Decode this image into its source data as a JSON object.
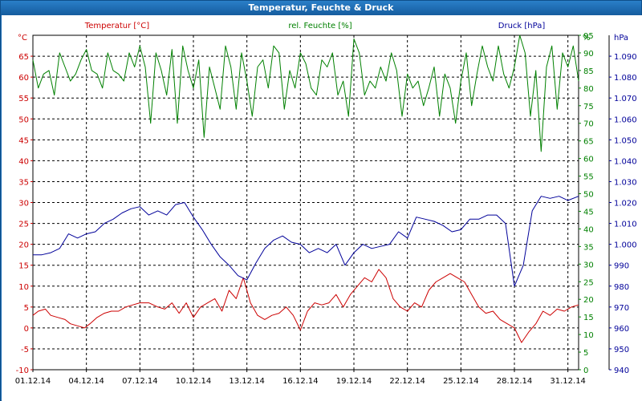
{
  "window": {
    "title": "Temperatur, Feuchte & Druck"
  },
  "chart_data": {
    "type": "line",
    "title": "Temperatur, Feuchte & Druck",
    "x_start": "01.12.14",
    "x_end": "02.01.15",
    "x_tick_labels": [
      "01.12.14",
      "04.12.14",
      "07.12.14",
      "10.12.14",
      "13.12.14",
      "16.12.14",
      "19.12.14",
      "22.12.14",
      "25.12.14",
      "28.12.14",
      "31.12.14"
    ],
    "x_tick_days": [
      0,
      3,
      6,
      9,
      12,
      15,
      18,
      21,
      24,
      27,
      30
    ],
    "x_range_days": [
      0,
      30.6
    ],
    "grid": true,
    "axes": {
      "temperature": {
        "label": "Temperatur [°C]",
        "unit_label": "°C",
        "range": [
          -10,
          70
        ],
        "ticks": [
          -10,
          -5,
          0,
          5,
          10,
          15,
          20,
          25,
          30,
          35,
          40,
          45,
          50,
          55,
          60,
          65
        ],
        "color": "#cc0000"
      },
      "humidity": {
        "label": "rel. Feuchte [%]",
        "unit_label": "%",
        "range": [
          0,
          95
        ],
        "ticks": [
          0,
          5,
          10,
          15,
          20,
          25,
          30,
          35,
          40,
          45,
          50,
          55,
          60,
          65,
          70,
          75,
          80,
          85,
          90,
          95
        ],
        "color": "#008000"
      },
      "pressure": {
        "label": "Druck [hPa]",
        "unit_label": "hPa",
        "range": [
          940,
          1100
        ],
        "ticks": [
          940,
          950,
          960,
          970,
          980,
          990,
          1000,
          1010,
          1020,
          1030,
          1040,
          1050,
          1060,
          1070,
          1080,
          1090
        ],
        "tick_labels": [
          "940",
          "950",
          "960",
          "970",
          "980",
          "990",
          "1.000",
          "1.010",
          "1.020",
          "1.030",
          "1.040",
          "1.050",
          "1.060",
          "1.070",
          "1.080",
          "1.090"
        ],
        "color": "#000099"
      }
    },
    "series": [
      {
        "name": "Temperatur [°C]",
        "axis": "temperature",
        "color": "#cc0000",
        "x": [
          0,
          0.3,
          0.7,
          1.0,
          1.4,
          1.8,
          2.1,
          2.5,
          2.9,
          3.2,
          3.6,
          4.0,
          4.4,
          4.8,
          5.2,
          5.6,
          6.0,
          6.5,
          7.0,
          7.4,
          7.8,
          8.2,
          8.6,
          9.0,
          9.4,
          9.8,
          10.2,
          10.6,
          11.0,
          11.4,
          11.8,
          12.2,
          12.6,
          13.0,
          13.4,
          13.8,
          14.2,
          14.6,
          15.0,
          15.4,
          15.8,
          16.2,
          16.6,
          17.0,
          17.4,
          17.8,
          18.2,
          18.6,
          19.0,
          19.4,
          19.8,
          20.2,
          20.6,
          21.0,
          21.4,
          21.8,
          22.2,
          22.6,
          23.0,
          23.4,
          23.8,
          24.2,
          24.6,
          25.0,
          25.4,
          25.8,
          26.2,
          26.6,
          27.0,
          27.4,
          27.8,
          28.2,
          28.6,
          29.0,
          29.4,
          29.8,
          30.2,
          30.6
        ],
        "y": [
          3,
          4,
          4.5,
          3,
          2.5,
          2,
          1,
          0.5,
          0,
          1,
          2.5,
          3.5,
          4,
          4,
          5,
          5.5,
          6,
          6,
          5,
          4.5,
          6,
          3.5,
          6,
          2.5,
          5,
          6,
          7,
          4,
          9,
          7,
          12,
          6,
          3,
          2,
          3,
          3.5,
          5,
          3,
          -0.5,
          4,
          6,
          5.5,
          6,
          8,
          5,
          8,
          10,
          12,
          11,
          14,
          12,
          7,
          5,
          4,
          6,
          5,
          9,
          11,
          12,
          13,
          12,
          11,
          8,
          5,
          3.5,
          4,
          2,
          1,
          0,
          -3.5,
          -1,
          1,
          4,
          3,
          4.5,
          4,
          5,
          5.5
        ]
      },
      {
        "name": "rel. Feuchte [%]",
        "axis": "humidity",
        "color": "#008000",
        "x": [
          0,
          0.3,
          0.6,
          0.9,
          1.2,
          1.5,
          1.8,
          2.1,
          2.4,
          2.7,
          3.0,
          3.3,
          3.6,
          3.9,
          4.2,
          4.5,
          4.8,
          5.1,
          5.4,
          5.7,
          6.0,
          6.3,
          6.6,
          6.9,
          7.2,
          7.5,
          7.8,
          8.1,
          8.4,
          8.7,
          9.0,
          9.3,
          9.6,
          9.9,
          10.2,
          10.5,
          10.8,
          11.1,
          11.4,
          11.7,
          12.0,
          12.3,
          12.6,
          12.9,
          13.2,
          13.5,
          13.8,
          14.1,
          14.4,
          14.7,
          15.0,
          15.3,
          15.6,
          15.9,
          16.2,
          16.5,
          16.8,
          17.1,
          17.4,
          17.7,
          18.0,
          18.3,
          18.6,
          18.9,
          19.2,
          19.5,
          19.8,
          20.1,
          20.4,
          20.7,
          21.0,
          21.3,
          21.6,
          21.9,
          22.2,
          22.5,
          22.8,
          23.1,
          23.4,
          23.7,
          24.0,
          24.3,
          24.6,
          24.9,
          25.2,
          25.5,
          25.8,
          26.1,
          26.4,
          26.7,
          27.0,
          27.3,
          27.6,
          27.9,
          28.2,
          28.5,
          28.8,
          29.1,
          29.4,
          29.7,
          30.0,
          30.3,
          30.6
        ],
        "y": [
          88,
          80,
          84,
          85,
          78,
          90,
          86,
          82,
          84,
          88,
          91,
          85,
          84,
          80,
          90,
          85,
          84,
          82,
          90,
          86,
          92,
          86,
          70,
          90,
          85,
          78,
          91,
          70,
          92,
          85,
          80,
          88,
          66,
          86,
          80,
          74,
          92,
          86,
          74,
          90,
          82,
          72,
          86,
          88,
          80,
          92,
          90,
          74,
          85,
          80,
          90,
          87,
          80,
          78,
          88,
          86,
          90,
          78,
          82,
          72,
          94,
          90,
          78,
          82,
          80,
          86,
          82,
          90,
          85,
          72,
          84,
          80,
          82,
          75,
          80,
          86,
          72,
          84,
          80,
          70,
          82,
          90,
          75,
          84,
          92,
          86,
          82,
          92,
          84,
          80,
          86,
          95,
          90,
          72,
          85,
          62,
          86,
          92,
          74,
          90,
          86,
          92,
          82
        ]
      },
      {
        "name": "Druck [hPa]",
        "axis": "pressure",
        "color": "#000099",
        "x": [
          0,
          0.5,
          1.0,
          1.5,
          2.0,
          2.5,
          3.0,
          3.5,
          4.0,
          4.5,
          5.0,
          5.5,
          6.0,
          6.5,
          7.0,
          7.5,
          8.0,
          8.5,
          9.0,
          9.5,
          10.0,
          10.5,
          11.0,
          11.5,
          12.0,
          12.5,
          13.0,
          13.5,
          14.0,
          14.5,
          15.0,
          15.5,
          16.0,
          16.5,
          17.0,
          17.5,
          18.0,
          18.5,
          19.0,
          19.5,
          20.0,
          20.5,
          21.0,
          21.5,
          22.0,
          22.5,
          23.0,
          23.5,
          24.0,
          24.5,
          25.0,
          25.5,
          26.0,
          26.5,
          27.0,
          27.5,
          28.0,
          28.5,
          29.0,
          29.5,
          30.0,
          30.6
        ],
        "y": [
          995,
          995,
          996,
          998,
          1005,
          1003,
          1005,
          1006,
          1010,
          1012,
          1015,
          1017,
          1018,
          1014,
          1016,
          1014,
          1019,
          1020,
          1013,
          1007,
          1000,
          994,
          990,
          985,
          983,
          991,
          998,
          1002,
          1004,
          1001,
          1000,
          996,
          998,
          996,
          1000,
          990,
          996,
          1000,
          998,
          999,
          1000,
          1006,
          1003,
          1013,
          1012,
          1011,
          1009,
          1006,
          1007,
          1012,
          1012,
          1014,
          1014,
          1010,
          980,
          990,
          1016,
          1023,
          1022,
          1023,
          1021,
          1023
        ]
      }
    ]
  }
}
